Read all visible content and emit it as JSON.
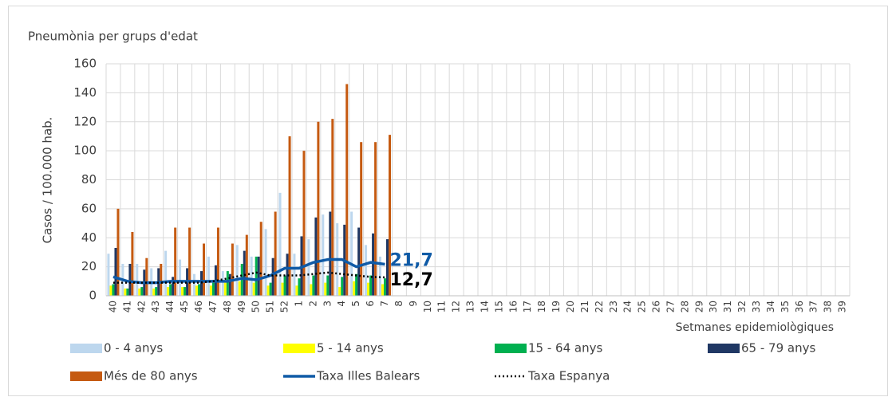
{
  "chart_data": {
    "type": "bar",
    "title": "Pneumònia per grups d'edat",
    "y_label": "Casos / 100.000 hab.",
    "x_label": "Setmanes epidemiològiques",
    "categories": [
      "40",
      "41",
      "42",
      "43",
      "44",
      "45",
      "46",
      "47",
      "48",
      "49",
      "50",
      "51",
      "52",
      "1",
      "2",
      "3",
      "4",
      "5",
      "6",
      "7",
      "8",
      "9",
      "10",
      "11",
      "12",
      "13",
      "14",
      "15",
      "16",
      "17",
      "18",
      "19",
      "20",
      "21",
      "22",
      "23",
      "24",
      "25",
      "26",
      "27",
      "28",
      "29",
      "30",
      "31",
      "32",
      "33",
      "34",
      "35",
      "36",
      "37",
      "38",
      "39"
    ],
    "ylim": [
      0,
      160
    ],
    "yticks": [
      0,
      20,
      40,
      60,
      80,
      100,
      120,
      140,
      160
    ],
    "grid": true,
    "legend": "bottom",
    "series": [
      {
        "name": "0 - 4 anys",
        "type": "bar",
        "color": "#bdd7ee",
        "values": [
          29,
          22,
          22,
          19,
          31,
          25,
          15,
          27,
          17,
          35,
          27,
          46,
          71,
          29,
          39,
          56,
          50,
          58,
          35,
          27,
          null,
          null,
          null,
          null,
          null,
          null,
          null,
          null,
          null,
          null,
          null,
          null,
          null,
          null,
          null,
          null,
          null,
          null,
          null,
          null,
          null,
          null,
          null,
          null,
          null,
          null,
          null,
          null,
          null,
          null,
          null,
          null
        ]
      },
      {
        "name": "5 - 14 anys",
        "type": "bar",
        "color": "#ffff00",
        "values": [
          7,
          5,
          5,
          5,
          6,
          6,
          7,
          7,
          9,
          10,
          9,
          7,
          9,
          7,
          8,
          9,
          6,
          10,
          9,
          8,
          null,
          null,
          null,
          null,
          null,
          null,
          null,
          null,
          null,
          null,
          null,
          null,
          null,
          null,
          null,
          null,
          null,
          null,
          null,
          null,
          null,
          null,
          null,
          null,
          null,
          null,
          null,
          null,
          null,
          null,
          null,
          null
        ]
      },
      {
        "name": "15 - 64 anys",
        "type": "bar",
        "color": "#00b050",
        "values": [
          8,
          5,
          6,
          6,
          8,
          6,
          8,
          9,
          17,
          22,
          27,
          9,
          14,
          12,
          14,
          14,
          13,
          15,
          14,
          12,
          null,
          null,
          null,
          null,
          null,
          null,
          null,
          null,
          null,
          null,
          null,
          null,
          null,
          null,
          null,
          null,
          null,
          null,
          null,
          null,
          null,
          null,
          null,
          null,
          null,
          null,
          null,
          null,
          null,
          null,
          null,
          null
        ]
      },
      {
        "name": "65 - 79 anys",
        "type": "bar",
        "color": "#203864",
        "values": [
          33,
          22,
          18,
          19,
          13,
          19,
          17,
          21,
          15,
          31,
          27,
          26,
          29,
          41,
          54,
          58,
          49,
          47,
          43,
          39,
          null,
          null,
          null,
          null,
          null,
          null,
          null,
          null,
          null,
          null,
          null,
          null,
          null,
          null,
          null,
          null,
          null,
          null,
          null,
          null,
          null,
          null,
          null,
          null,
          null,
          null,
          null,
          null,
          null,
          null,
          null,
          null
        ]
      },
      {
        "name": "Més de 80 anys",
        "type": "bar",
        "color": "#c55a11",
        "values": [
          60,
          44,
          26,
          22,
          47,
          47,
          36,
          47,
          36,
          42,
          51,
          58,
          110,
          100,
          120,
          122,
          146,
          106,
          106,
          111,
          null,
          null,
          null,
          null,
          null,
          null,
          null,
          null,
          null,
          null,
          null,
          null,
          null,
          null,
          null,
          null,
          null,
          null,
          null,
          null,
          null,
          null,
          null,
          null,
          null,
          null,
          null,
          null,
          null,
          null,
          null,
          null
        ]
      },
      {
        "name": "Taxa Illes Balears",
        "type": "line",
        "color": "#0f5aa6",
        "end_label": "21,7",
        "values": [
          13,
          10,
          9,
          9,
          10,
          10,
          10,
          10,
          10,
          12,
          11,
          14,
          19,
          19,
          23,
          25,
          25,
          20,
          23,
          21.7,
          null,
          null,
          null,
          null,
          null,
          null,
          null,
          null,
          null,
          null,
          null,
          null,
          null,
          null,
          null,
          null,
          null,
          null,
          null,
          null,
          null,
          null,
          null,
          null,
          null,
          null,
          null,
          null,
          null,
          null,
          null,
          null
        ]
      },
      {
        "name": "Taxa Espanya",
        "type": "line",
        "color": "#000000",
        "dash": true,
        "end_label": "12,7",
        "values": [
          9,
          9,
          9,
          9,
          9,
          9,
          9,
          10,
          12,
          14,
          16,
          14,
          14,
          14,
          15,
          16,
          15,
          14,
          13,
          12.7,
          null,
          null,
          null,
          null,
          null,
          null,
          null,
          null,
          null,
          null,
          null,
          null,
          null,
          null,
          null,
          null,
          null,
          null,
          null,
          null,
          null,
          null,
          null,
          null,
          null,
          null,
          null,
          null,
          null,
          null,
          null,
          null
        ]
      }
    ]
  }
}
